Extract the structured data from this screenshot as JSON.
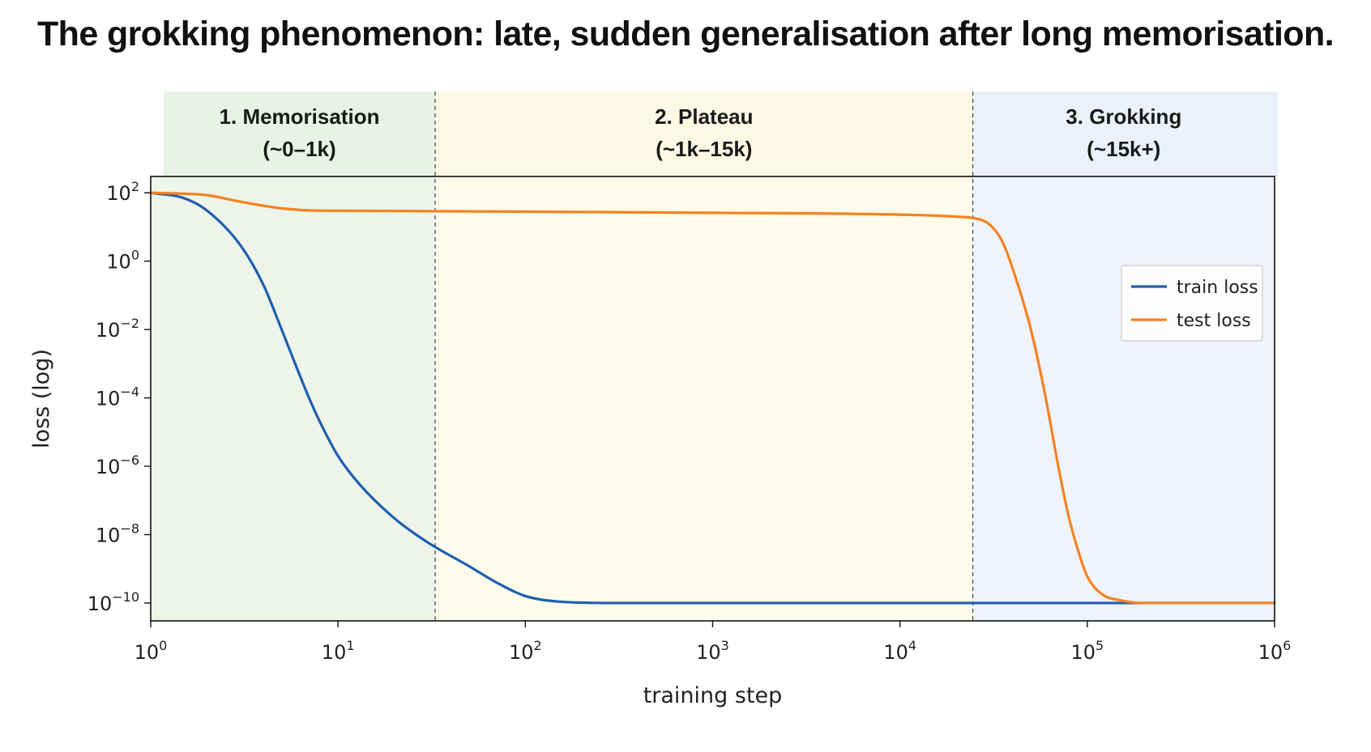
{
  "chart_data": {
    "type": "line",
    "title": "The grokking phenomenon: late, sudden generalisation after long memorisation.",
    "xlabel": "training step",
    "ylabel": "loss (log)",
    "xscale": "log",
    "yscale": "log",
    "xlim": [
      1,
      1000000
    ],
    "ylim": [
      3e-11,
      300
    ],
    "x_ticks": [
      {
        "value": 1,
        "base": "10",
        "exp": "0"
      },
      {
        "value": 10,
        "base": "10",
        "exp": "1"
      },
      {
        "value": 100,
        "base": "10",
        "exp": "2"
      },
      {
        "value": 1000,
        "base": "10",
        "exp": "3"
      },
      {
        "value": 10000,
        "base": "10",
        "exp": "4"
      },
      {
        "value": 100000,
        "base": "10",
        "exp": "5"
      },
      {
        "value": 1000000,
        "base": "10",
        "exp": "6"
      }
    ],
    "y_ticks": [
      {
        "value": 100,
        "base": "10",
        "exp": "2"
      },
      {
        "value": 1,
        "base": "10",
        "exp": "0"
      },
      {
        "value": 0.01,
        "base": "10",
        "exp": "−2"
      },
      {
        "value": 0.0001,
        "base": "10",
        "exp": "−4"
      },
      {
        "value": 1e-06,
        "base": "10",
        "exp": "−6"
      },
      {
        "value": 1e-08,
        "base": "10",
        "exp": "−8"
      },
      {
        "value": 1e-10,
        "base": "10",
        "exp": "−10"
      }
    ],
    "phases": [
      {
        "label": "1. Memorisation",
        "range_label": "(~0–1k)",
        "start": 1,
        "end": 33,
        "color": "#edf5ea",
        "header_color": "#e9f2e6"
      },
      {
        "label": "2. Plateau",
        "range_label": "(~1k–15k)",
        "start": 33,
        "end": 24500,
        "color": "#fdfbea",
        "header_color": "#fbf8e4"
      },
      {
        "label": "3. Grokking",
        "range_label": "(~15k+)",
        "start": 24500,
        "end": 1000000,
        "color": "#eef3fc",
        "header_color": "#ebf1fb"
      }
    ],
    "phase_boundaries": [
      33,
      24500
    ],
    "series": [
      {
        "name": "train loss",
        "color": "#1f5fb0",
        "points": [
          [
            1,
            100
          ],
          [
            1.5,
            70
          ],
          [
            2,
            30
          ],
          [
            3,
            3
          ],
          [
            4,
            0.2
          ],
          [
            5,
            0.01
          ],
          [
            6,
            0.0008
          ],
          [
            7,
            0.0001
          ],
          [
            8,
            2e-05
          ],
          [
            10,
            2e-06
          ],
          [
            13,
            3e-07
          ],
          [
            20,
            3e-08
          ],
          [
            30,
            6e-09
          ],
          [
            50,
            1.2e-09
          ],
          [
            70,
            4e-10
          ],
          [
            100,
            1.6e-10
          ],
          [
            150,
            1.1e-10
          ],
          [
            300,
            1e-10
          ],
          [
            1000000,
            1e-10
          ]
        ]
      },
      {
        "name": "test loss",
        "color": "#f58220",
        "points": [
          [
            1,
            100
          ],
          [
            2,
            85
          ],
          [
            3,
            55
          ],
          [
            5,
            35
          ],
          [
            8,
            30
          ],
          [
            30,
            29
          ],
          [
            100,
            28
          ],
          [
            1000,
            26
          ],
          [
            10000,
            23
          ],
          [
            20000,
            20
          ],
          [
            25000,
            18
          ],
          [
            30000,
            12
          ],
          [
            35000,
            4
          ],
          [
            40000,
            0.6
          ],
          [
            50000,
            0.01
          ],
          [
            60000,
            0.0001
          ],
          [
            70000,
            1e-06
          ],
          [
            80000,
            3e-08
          ],
          [
            90000,
            3e-09
          ],
          [
            100000,
            6e-10
          ],
          [
            120000,
            1.8e-10
          ],
          [
            150000,
            1.2e-10
          ],
          [
            200000,
            1e-10
          ],
          [
            1000000,
            1e-10
          ]
        ]
      }
    ],
    "legend": {
      "position": "right",
      "entries": [
        "train loss",
        "test loss"
      ]
    },
    "grid": false
  }
}
